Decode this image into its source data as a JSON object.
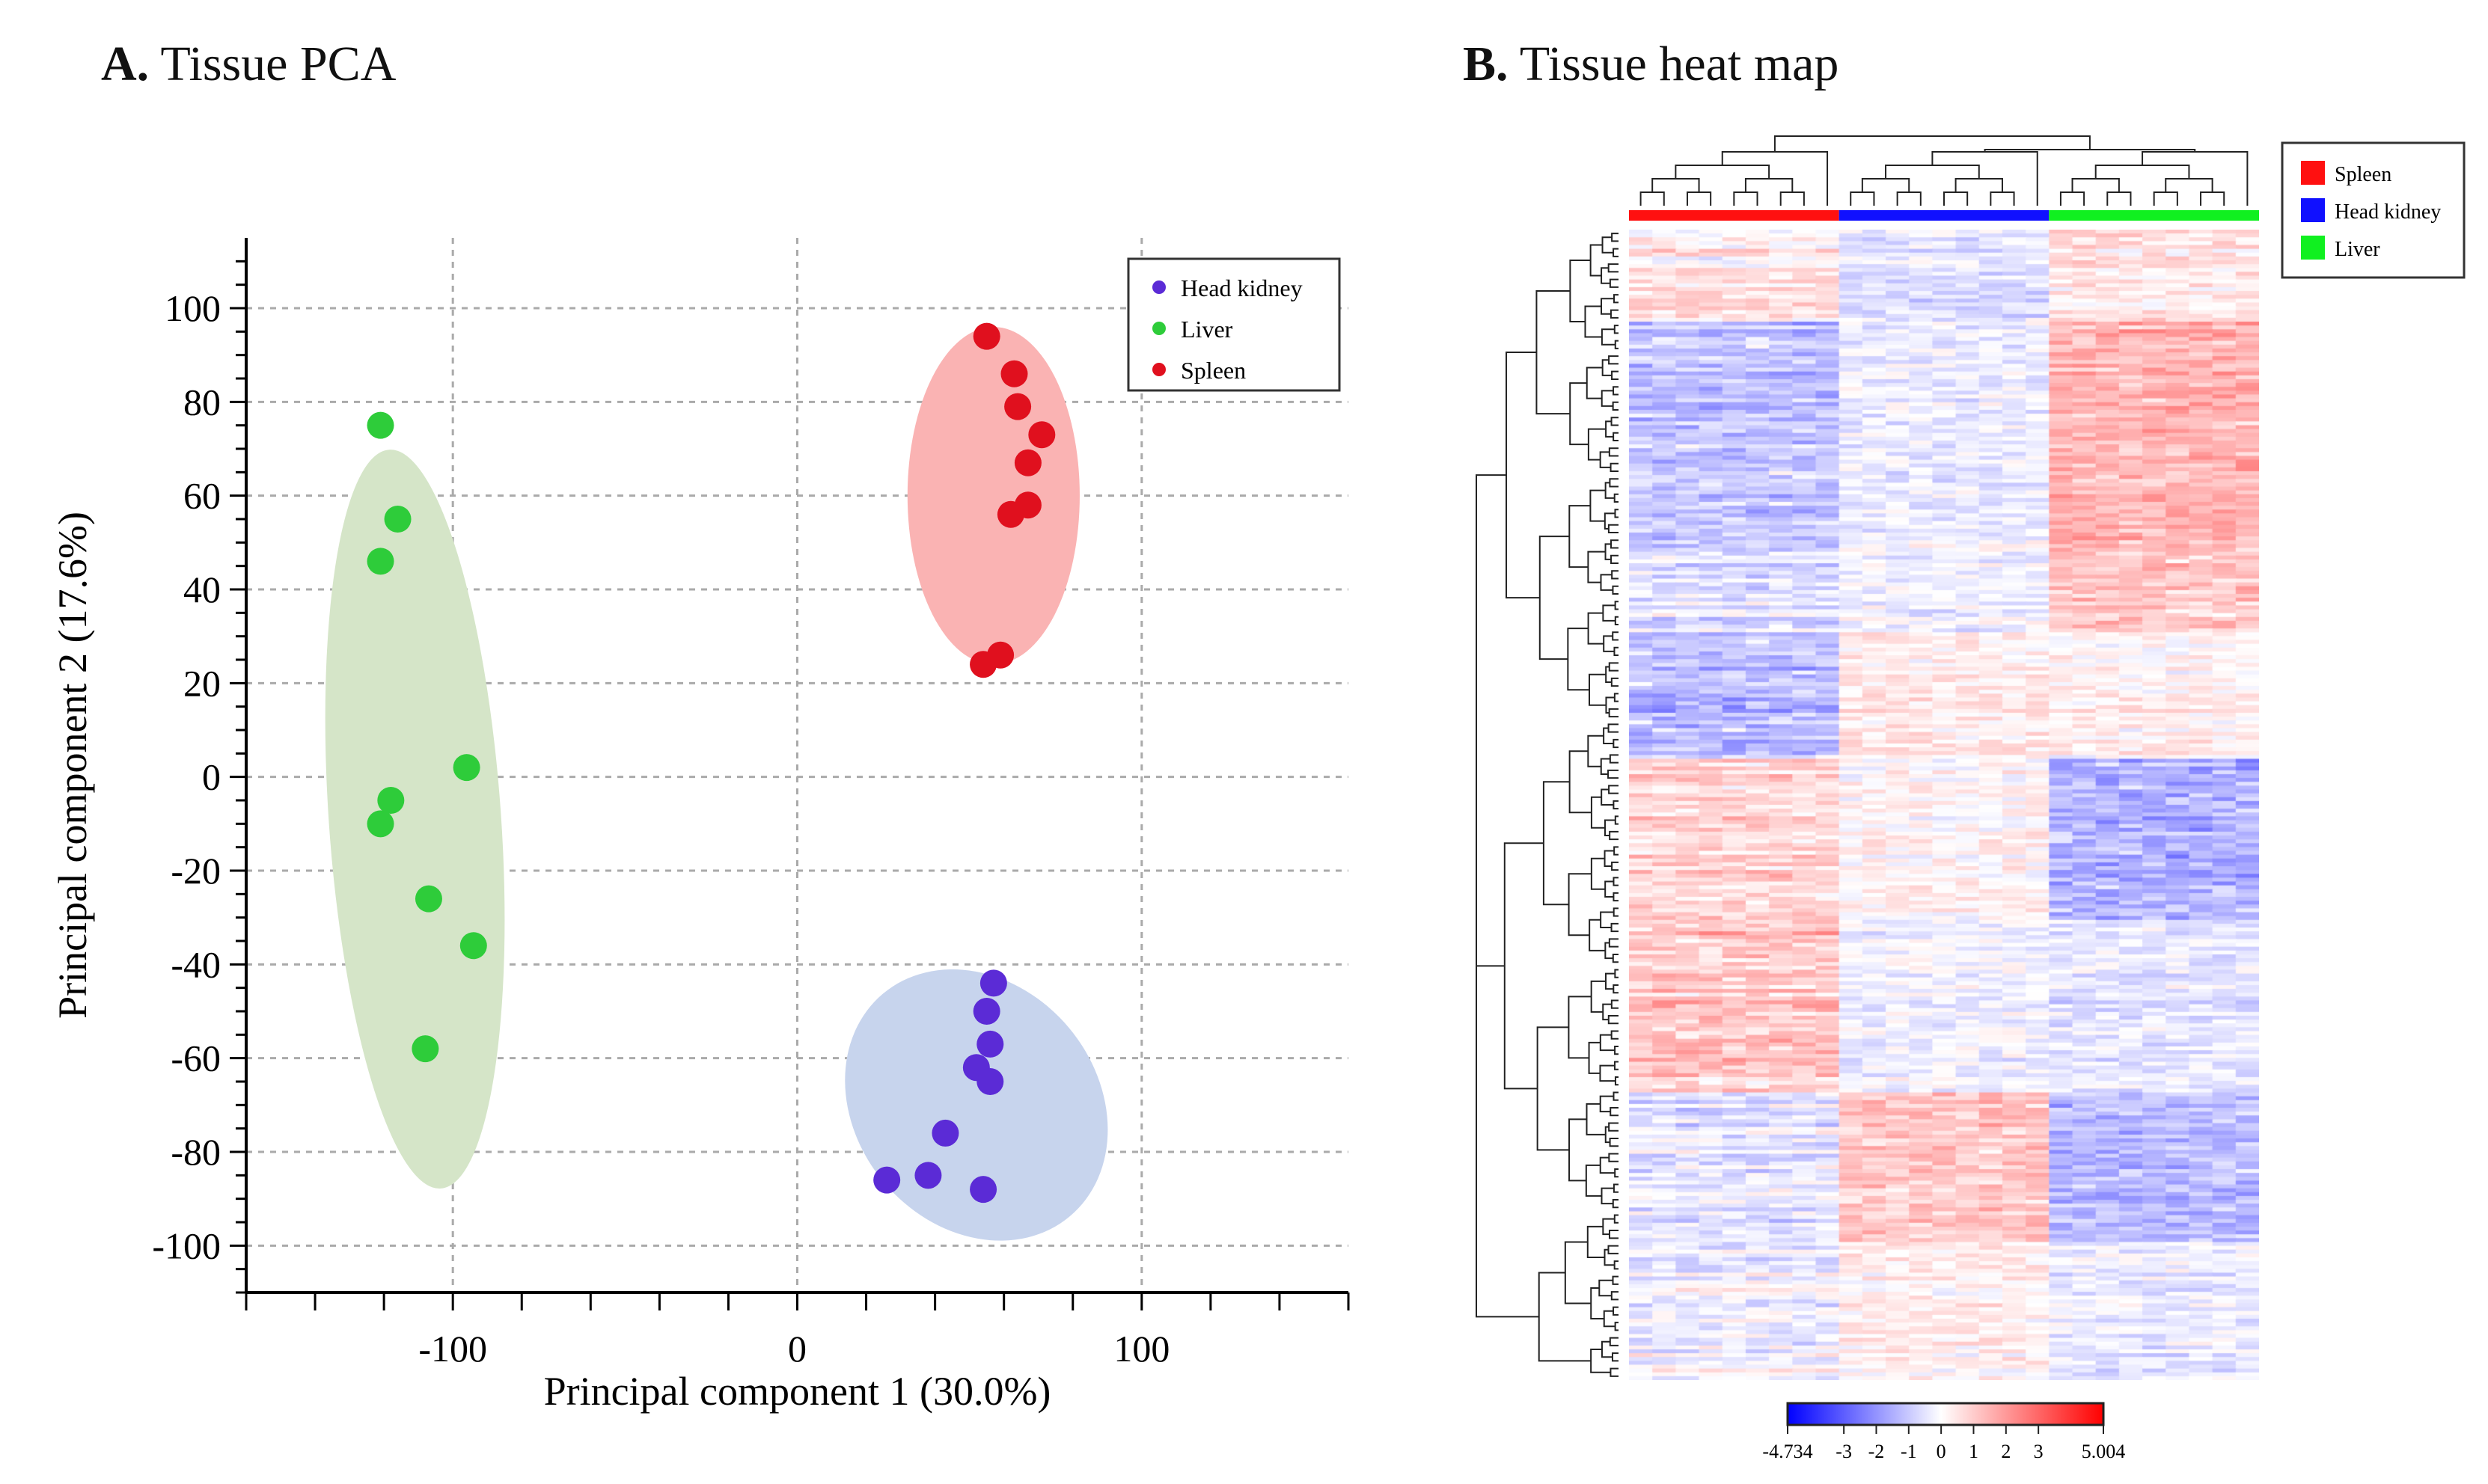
{
  "chart_data": [
    {
      "type": "scatter",
      "panel_letter": "A.",
      "title": "Tissue PCA",
      "xlabel": "Principal component 1 (30.0%)",
      "ylabel": "Principal component 2 (17.6%)",
      "xlim": [
        -160,
        160
      ],
      "ylim": [
        -110,
        115
      ],
      "xticks": [
        -100,
        0,
        100
      ],
      "yticks": [
        -100,
        -80,
        -60,
        -40,
        -20,
        0,
        20,
        40,
        60,
        80,
        100
      ],
      "grid": true,
      "legend_position": "top-right",
      "series": [
        {
          "name": "Head kidney",
          "color": "#5b2bd6",
          "ellipse_color": "#c7d4ed",
          "ellipse": {
            "cx": 52,
            "cy": -70,
            "rx": 35,
            "ry": 31,
            "angle": -40
          },
          "points": [
            [
              57,
              -44
            ],
            [
              55,
              -50
            ],
            [
              56,
              -57
            ],
            [
              52,
              -62
            ],
            [
              56,
              -65
            ],
            [
              43,
              -76
            ],
            [
              26,
              -86
            ],
            [
              38,
              -85
            ],
            [
              54,
              -88
            ]
          ]
        },
        {
          "name": "Liver",
          "color": "#2ecc3a",
          "ellipse_color": "#d5e5c8",
          "ellipse": {
            "cx": -111,
            "cy": -9,
            "rx": 25,
            "ry": 79,
            "angle": -4
          },
          "points": [
            [
              -121,
              75
            ],
            [
              -116,
              55
            ],
            [
              -121,
              46
            ],
            [
              -96,
              2
            ],
            [
              -118,
              -5
            ],
            [
              -121,
              -10
            ],
            [
              -107,
              -26
            ],
            [
              -94,
              -36
            ],
            [
              -108,
              -58
            ]
          ]
        },
        {
          "name": "Spleen",
          "color": "#e0101e",
          "ellipse_color": "#fab3b3",
          "ellipse": {
            "cx": 57,
            "cy": 60,
            "rx": 25,
            "ry": 36,
            "angle": 0
          },
          "points": [
            [
              55,
              94
            ],
            [
              63,
              86
            ],
            [
              64,
              79
            ],
            [
              71,
              73
            ],
            [
              67,
              67
            ],
            [
              67,
              58
            ],
            [
              62,
              56
            ],
            [
              59,
              26
            ],
            [
              54,
              24
            ]
          ]
        }
      ]
    },
    {
      "type": "heatmap",
      "panel_letter": "B.",
      "title": "Tissue heat map",
      "column_groups": [
        {
          "name": "Spleen",
          "color": "#ff1010",
          "n": 9
        },
        {
          "name": "Head kidney",
          "color": "#1010ff",
          "n": 9
        },
        {
          "name": "Liver",
          "color": "#10f020",
          "n": 9
        }
      ],
      "n_rows": 300,
      "colorscale": {
        "min": -4.734,
        "max": 5.004,
        "low_color": "#0000ff",
        "mid_color": "#ffffff",
        "high_color": "#ff0000",
        "tick_labels": [
          "-4.734",
          "-3",
          "-2",
          "-1",
          "0",
          "1",
          "2",
          "3",
          "5.004"
        ],
        "tick_values": [
          -4.734,
          -3,
          -2,
          -1,
          0,
          1,
          2,
          3,
          5.004
        ]
      }
    }
  ]
}
